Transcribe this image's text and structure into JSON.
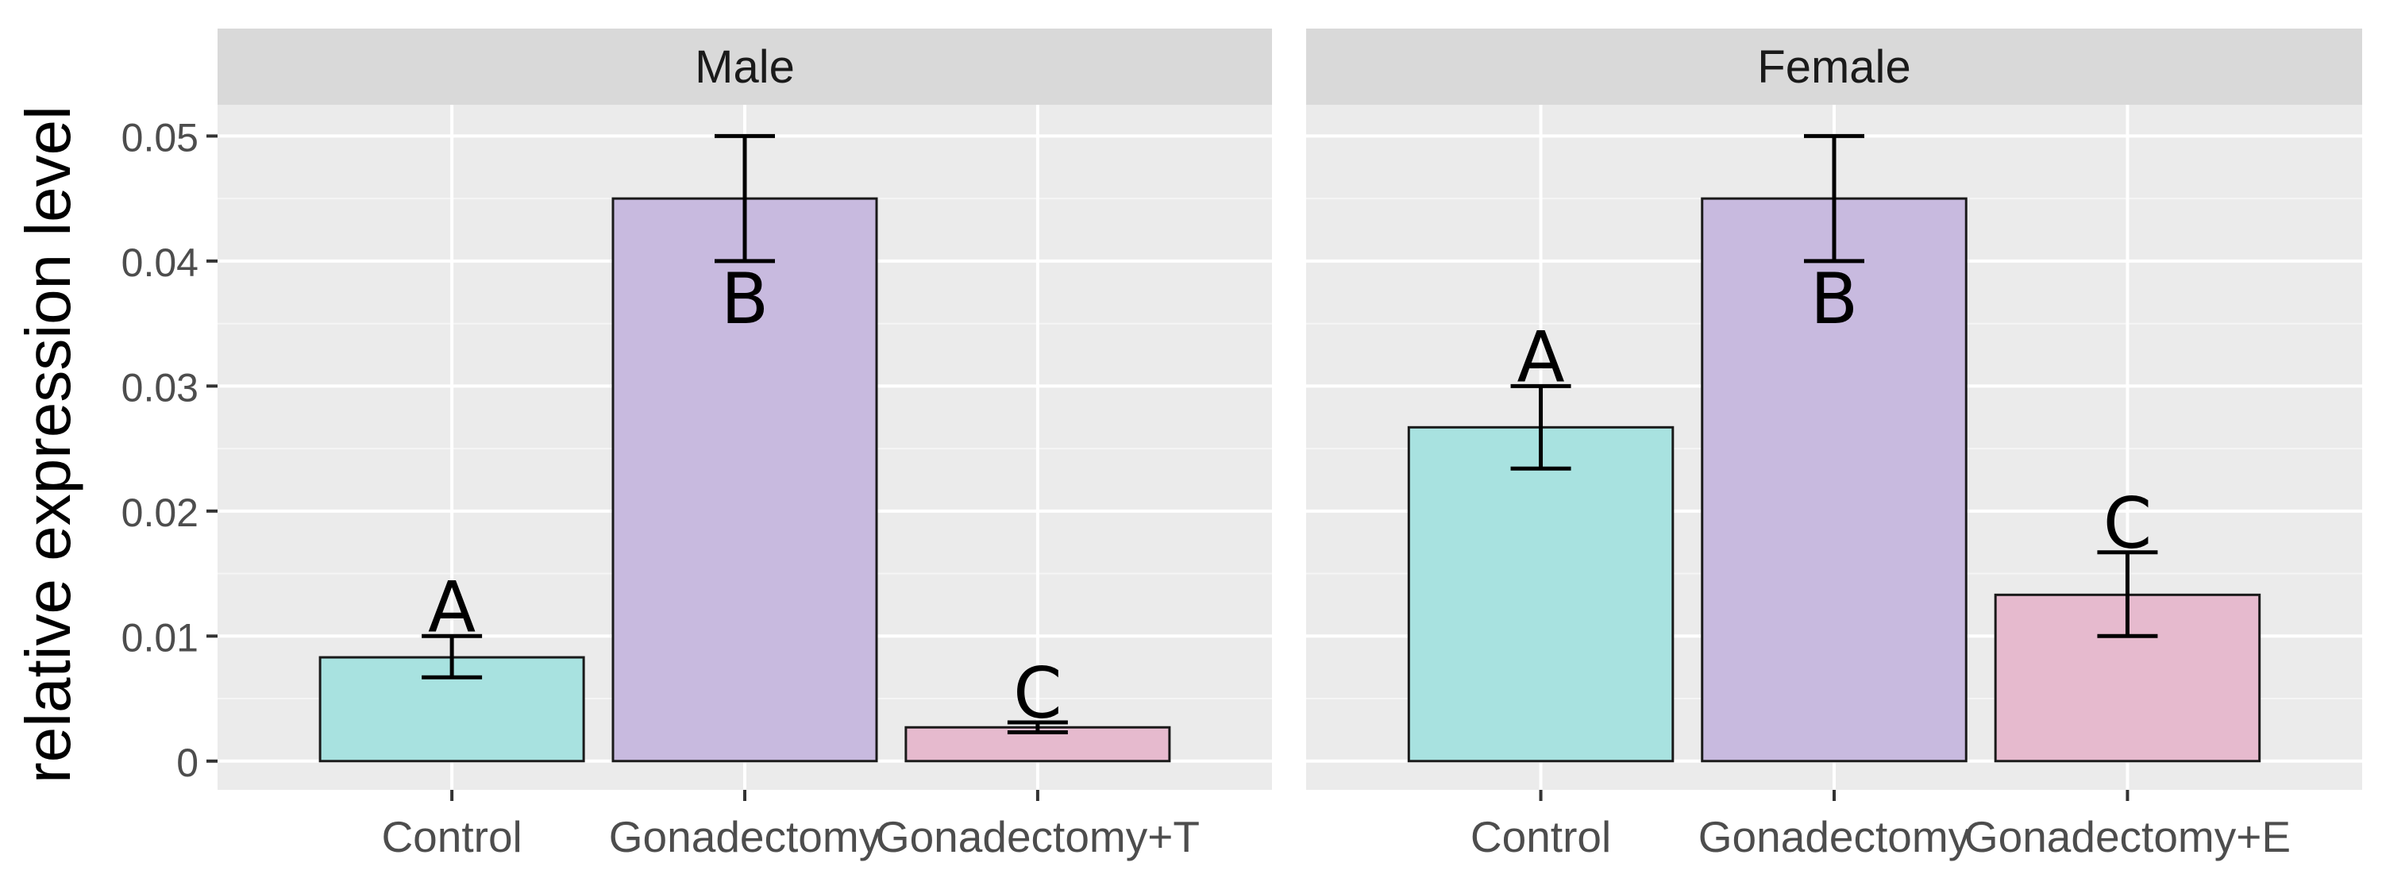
{
  "chart_data": {
    "type": "bar",
    "ylabel": "relative expression level",
    "ylim": [
      -0.0023,
      0.0525
    ],
    "yticks": [
      0,
      0.01,
      0.02,
      0.03,
      0.04,
      0.05
    ],
    "ytick_labels": [
      "0",
      "0.01",
      "0.02",
      "0.03",
      "0.04",
      "0.05"
    ],
    "grid": true,
    "colors": {
      "Control": "#a8e2e0",
      "Gonadectomy": "#c8badf",
      "Treated": "#e6bace"
    },
    "panels": [
      {
        "name": "Male",
        "categories": [
          "Control",
          "Gonadectomy",
          "Gonadectomy+T"
        ],
        "values": [
          0.0083,
          0.045,
          0.0027
        ],
        "error_low": [
          0.0067,
          0.04,
          0.0023
        ],
        "error_high": [
          0.01,
          0.05,
          0.0031
        ],
        "labels": [
          "A",
          "B",
          "C"
        ]
      },
      {
        "name": "Female",
        "categories": [
          "Control",
          "Gonadectomy",
          "Gonadectomy+E"
        ],
        "values": [
          0.0267,
          0.045,
          0.0133
        ],
        "error_low": [
          0.0234,
          0.04,
          0.01
        ],
        "error_high": [
          0.03,
          0.05,
          0.0167
        ],
        "labels": [
          "A",
          "B",
          "C"
        ]
      }
    ]
  }
}
